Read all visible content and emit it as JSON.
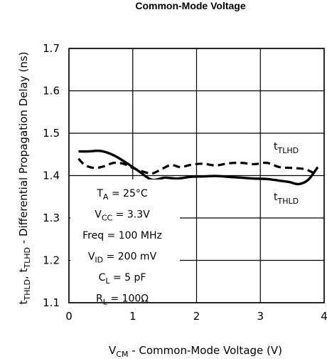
{
  "chart_data": {
    "type": "line",
    "title": "Common-Mode Voltage",
    "xlim": [
      0,
      4
    ],
    "ylim": [
      1.1,
      1.7
    ],
    "x_ticks": [
      "0",
      "1",
      "2",
      "3",
      "4"
    ],
    "y_ticks": [
      "1.1",
      "1.2",
      "1.3",
      "1.4",
      "1.5",
      "1.6",
      "1.7"
    ],
    "grid": true,
    "xlabel": {
      "main": "V",
      "sub": "CM",
      "rest": " - Common-Mode Voltage (V)"
    },
    "ylabel": {
      "p1": "t",
      "s1": "THLD",
      "p2": ", t",
      "s2": "TLHD",
      "p3": " - Differential Propagation Delay (ns)"
    },
    "series": [
      {
        "name": "tTLHD",
        "label_main": "t",
        "label_sub": "TLHD",
        "style": "dashed",
        "x": [
          0.15,
          0.25,
          0.4,
          0.55,
          0.7,
          0.85,
          1.0,
          1.15,
          1.3,
          1.45,
          1.6,
          1.75,
          1.9,
          2.1,
          2.3,
          2.5,
          2.7,
          2.9,
          3.1,
          3.3,
          3.5,
          3.7,
          3.85
        ],
        "values": [
          1.44,
          1.425,
          1.418,
          1.422,
          1.43,
          1.428,
          1.418,
          1.41,
          1.405,
          1.415,
          1.425,
          1.42,
          1.425,
          1.428,
          1.424,
          1.429,
          1.43,
          1.427,
          1.43,
          1.42,
          1.418,
          1.415,
          1.405
        ]
      },
      {
        "name": "tTHLD",
        "label_main": "t",
        "label_sub": "THLD",
        "style": "solid",
        "x": [
          0.15,
          0.3,
          0.5,
          0.7,
          0.9,
          1.1,
          1.3,
          1.5,
          1.7,
          1.9,
          2.1,
          2.3,
          2.5,
          2.7,
          2.9,
          3.1,
          3.3,
          3.45,
          3.6,
          3.75,
          3.9
        ],
        "values": [
          1.457,
          1.457,
          1.458,
          1.448,
          1.43,
          1.41,
          1.39,
          1.395,
          1.393,
          1.397,
          1.398,
          1.399,
          1.397,
          1.395,
          1.393,
          1.392,
          1.388,
          1.385,
          1.38,
          1.39,
          1.42
        ]
      }
    ],
    "conditions": [
      {
        "main": "T",
        "sub": "A",
        "rest": " = 25°C"
      },
      {
        "main": "V",
        "sub": "CC",
        "rest": " = 3.3V"
      },
      {
        "main": "Freq = 100 MHz",
        "sub": "",
        "rest": ""
      },
      {
        "main": "V",
        "sub": "ID",
        "rest": " = 200 mV"
      },
      {
        "main": "C",
        "sub": "L",
        "rest": " = 5 pF"
      },
      {
        "main": "R",
        "sub": "L",
        "rest": " = 100Ω"
      }
    ]
  }
}
